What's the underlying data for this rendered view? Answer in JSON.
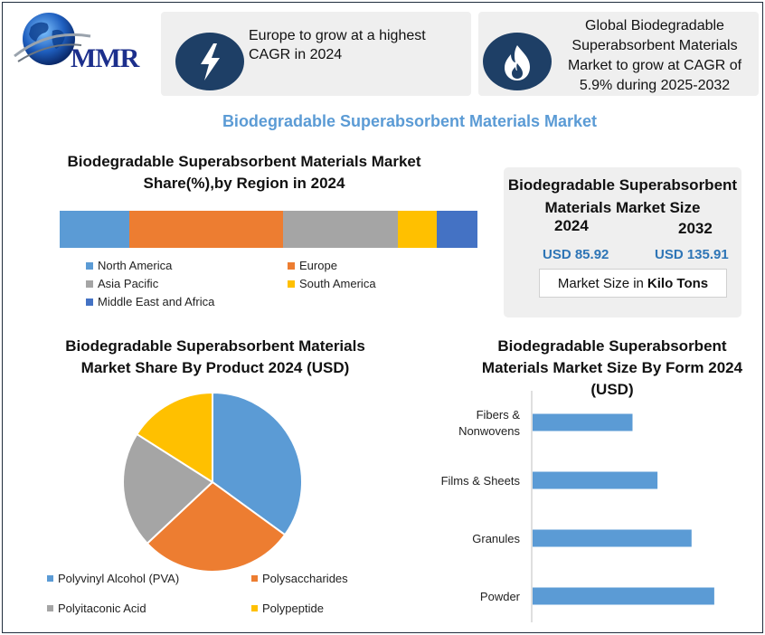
{
  "logo": {
    "text": "MMR"
  },
  "cards": {
    "card1": {
      "icon": "lightning-icon",
      "text": "Europe to grow at a highest CAGR in 2024"
    },
    "card2": {
      "icon": "flame-icon",
      "text": "Global Biodegradable Superabsorbent Materials Market to grow at CAGR of 5.9% during 2025-2032"
    }
  },
  "main_title": "Biodegradable Superabsorbent Materials Market",
  "region_section": {
    "title": "Biodegradable Superabsorbent Materials Market  Share(%),by Region in 2024"
  },
  "size_box": {
    "title": "Biodegradable Superabsorbent Materials Market Size",
    "year1": "2024",
    "year2": "2032",
    "value1": "USD 85.92",
    "value2": "USD 135.91",
    "unit_prefix": "Market Size in",
    "unit_bold": "Kilo Tons"
  },
  "product_section": {
    "title": "Biodegradable Superabsorbent Materials Market Share By Product 2024  (USD)"
  },
  "form_section": {
    "title": "Biodegradable Superabsorbent Materials Market Size By Form 2024 (USD)"
  },
  "chart_data": [
    {
      "type": "bar",
      "orientation": "horizontal-stacked",
      "categories": [
        "North America",
        "Europe",
        "Asia Pacific",
        "South America",
        "Middle East and Africa"
      ],
      "values": [
        16.7,
        36.8,
        27.4,
        9.3,
        9.8
      ],
      "colors": [
        "#5b9bd5",
        "#ed7d31",
        "#a5a5a5",
        "#ffc000",
        "#4472c4"
      ],
      "legend_position": "bottom"
    },
    {
      "type": "pie",
      "categories": [
        "Polyvinyl Alcohol (PVA)",
        "Polysaccharides",
        "Polyitaconic Acid",
        "Polypeptide"
      ],
      "values": [
        35,
        28,
        21,
        16
      ],
      "colors": [
        "#5b9bd5",
        "#ed7d31",
        "#a5a5a5",
        "#ffc000"
      ],
      "legend_position": "bottom"
    },
    {
      "type": "bar",
      "orientation": "horizontal",
      "categories": [
        "Fibers & Nonwovens",
        "Films & Sheets",
        "Granules",
        "Powder"
      ],
      "values": [
        22,
        27.5,
        35,
        40
      ],
      "xlim": [
        0,
        45
      ],
      "colors": [
        "#5b9bd5"
      ],
      "grid": false
    }
  ]
}
